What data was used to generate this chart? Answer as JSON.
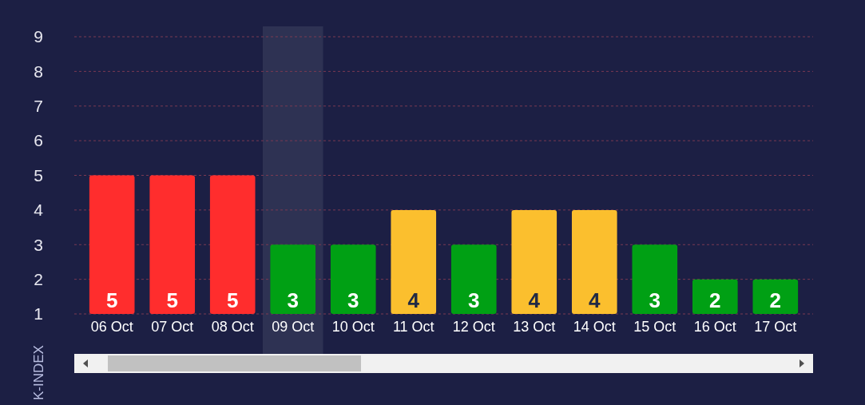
{
  "chart_data": {
    "type": "bar",
    "ylabel": "K-INDEX",
    "categories": [
      "06 Oct",
      "07 Oct",
      "08 Oct",
      "09 Oct",
      "10 Oct",
      "11 Oct",
      "12 Oct",
      "13 Oct",
      "14 Oct",
      "15 Oct",
      "16 Oct",
      "17 Oct"
    ],
    "values": [
      5,
      5,
      5,
      3,
      3,
      4,
      3,
      4,
      4,
      3,
      2,
      2
    ],
    "colors": [
      "#ff2d2d",
      "#ff2d2d",
      "#ff2d2d",
      "#00a014",
      "#00a014",
      "#fbbf2e",
      "#00a014",
      "#fbbf2e",
      "#fbbf2e",
      "#00a014",
      "#00a014",
      "#00a014"
    ],
    "ylim": [
      1,
      9
    ],
    "yticks": [
      1,
      2,
      3,
      4,
      5,
      6,
      7,
      8,
      9
    ],
    "grid": "y",
    "data_labels": true,
    "bands": [
      {
        "axis": "x",
        "from": "09 Oct",
        "to": "09 Oct",
        "color": "#2e3253"
      }
    ]
  }
}
